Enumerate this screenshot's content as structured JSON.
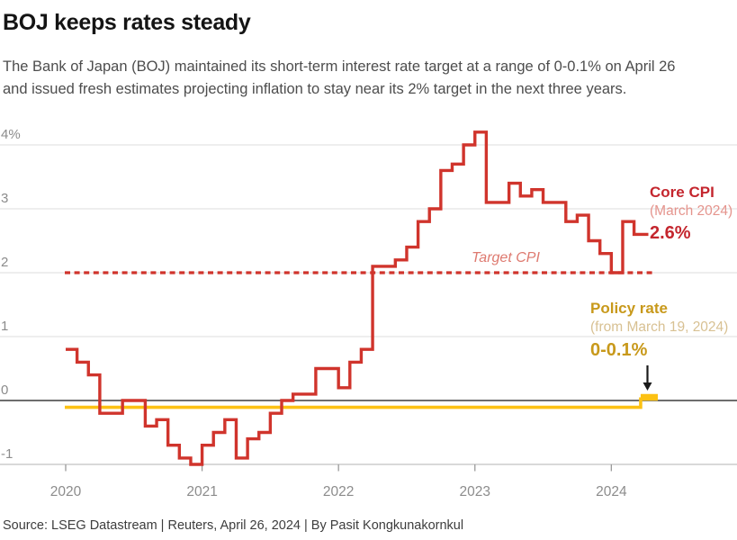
{
  "header": {
    "title": "BOJ keeps rates steady",
    "subtitle_line1": "The Bank of Japan (BOJ) maintained its short-term interest rate target at a range of 0-0.1% on April 26",
    "subtitle_line2": "and issued fresh estimates projecting inflation to stay near its 2% target in the next three years."
  },
  "annotations": {
    "core_cpi": {
      "label": "Core CPI",
      "sublabel": "(March 2024)",
      "value": "2.6%"
    },
    "target_cpi": {
      "label": "Target CPI"
    },
    "policy_rate": {
      "label": "Policy rate",
      "sublabel": "(from March 19, 2024)",
      "value": "0-0.1%"
    }
  },
  "source": "Source: LSEG Datastream | Reuters, April 26, 2024 | By Pasit Kongkunakornkul",
  "colors": {
    "cpi_line": "#d0342c",
    "cpi_label_bold": "#c4262e",
    "cpi_label_light": "#e5948d",
    "target_dash": "#d0342c",
    "policy_line": "#fcc113",
    "policy_label_bold": "#c8991b",
    "policy_label_light": "#d8c193",
    "zero_line": "#3d3d3d",
    "gridline": "#dcdcdc",
    "axis_line": "#c2c2c2",
    "tick_text": "#8c8c8c",
    "arrow": "#1a1a1a"
  },
  "chart_data": {
    "type": "line",
    "title": "BOJ keeps rates steady",
    "xlabel": "",
    "ylabel": "%",
    "ylim": [
      -1,
      4.4
    ],
    "grid": true,
    "x_ticks": [
      "2020",
      "2021",
      "2022",
      "2023",
      "2024"
    ],
    "y_ticks": [
      {
        "label": "4%",
        "value": 4
      },
      {
        "label": "3",
        "value": 3
      },
      {
        "label": "2",
        "value": 2
      },
      {
        "label": "1",
        "value": 1
      },
      {
        "label": "0",
        "value": 0
      },
      {
        "label": "-1",
        "value": -1
      }
    ],
    "series": [
      {
        "name": "Core CPI (% year-on-year, monthly, step)",
        "type": "step",
        "start_month": "2020-01",
        "end_month": "2024-03",
        "values": [
          0.8,
          0.6,
          0.4,
          -0.2,
          -0.2,
          0.0,
          0.0,
          -0.4,
          -0.3,
          -0.7,
          -0.9,
          -1.0,
          -0.7,
          -0.5,
          -0.3,
          -0.9,
          -0.6,
          -0.5,
          -0.2,
          0.0,
          0.1,
          0.1,
          0.5,
          0.5,
          0.2,
          0.6,
          0.8,
          2.1,
          2.1,
          2.2,
          2.4,
          2.8,
          3.0,
          3.6,
          3.7,
          4.0,
          4.2,
          3.1,
          3.1,
          3.4,
          3.2,
          3.3,
          3.1,
          3.1,
          2.8,
          2.9,
          2.5,
          2.3,
          2.0,
          2.8,
          2.6
        ]
      },
      {
        "name": "Target CPI",
        "type": "dashed-horizontal",
        "value": 2.0
      },
      {
        "name": "Policy rate",
        "type": "step",
        "rate_until_change": -0.1,
        "change_date": "2024-03-19",
        "rate_after_range": [
          0,
          0.1
        ]
      }
    ]
  }
}
